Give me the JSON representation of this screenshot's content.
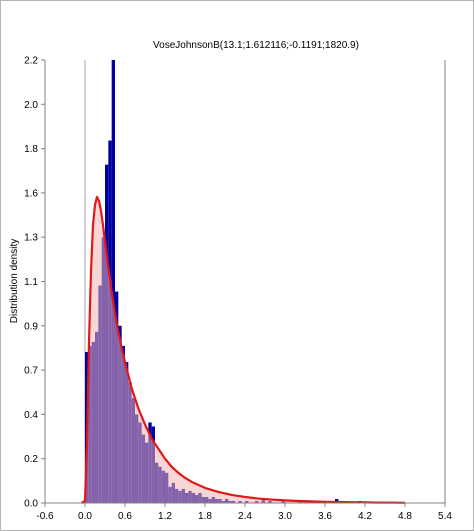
{
  "chart_data": {
    "type": "bar",
    "title": "VoseJohnsonB(13.1;1.612116;-0.1191;1820.9)",
    "xlabel": "",
    "ylabel": "Distribution density",
    "xlim": [
      -0.6,
      5.4
    ],
    "ylim": [
      0,
      2.2
    ],
    "x_ticks": [
      "-0.6",
      "0.0",
      "0.6",
      "1.2",
      "1.8",
      "2.4",
      "3.0",
      "3.6",
      "4.2",
      "4.8",
      "5.4"
    ],
    "x_tick_values": [
      -0.6,
      0.0,
      0.6,
      1.2,
      1.8,
      2.4,
      3.0,
      3.6,
      4.2,
      4.8,
      5.4
    ],
    "y_ticks": [
      "0.0",
      "0.2",
      "0.4",
      "0.7",
      "0.9",
      "1.1",
      "1.3",
      "1.6",
      "1.8",
      "2.0",
      "2.2"
    ],
    "y_tick_values": [
      0.0,
      0.22,
      0.44,
      0.66,
      0.88,
      1.1,
      1.32,
      1.54,
      1.76,
      1.98,
      2.2
    ],
    "grid": false,
    "histogram": {
      "bin_width": 0.05,
      "bins": [
        {
          "x": 0.0,
          "y": 0.75
        },
        {
          "x": 0.05,
          "y": 0.78
        },
        {
          "x": 0.1,
          "y": 0.8
        },
        {
          "x": 0.15,
          "y": 0.85
        },
        {
          "x": 0.2,
          "y": 1.08
        },
        {
          "x": 0.25,
          "y": 1.32
        },
        {
          "x": 0.3,
          "y": 1.68
        },
        {
          "x": 0.35,
          "y": 1.8
        },
        {
          "x": 0.4,
          "y": 2.2
        },
        {
          "x": 0.45,
          "y": 1.05
        },
        {
          "x": 0.5,
          "y": 0.88
        },
        {
          "x": 0.55,
          "y": 0.78
        },
        {
          "x": 0.6,
          "y": 0.7
        },
        {
          "x": 0.65,
          "y": 0.6
        },
        {
          "x": 0.7,
          "y": 0.52
        },
        {
          "x": 0.75,
          "y": 0.44
        },
        {
          "x": 0.8,
          "y": 0.4
        },
        {
          "x": 0.85,
          "y": 0.34
        },
        {
          "x": 0.9,
          "y": 0.3
        },
        {
          "x": 0.95,
          "y": 0.4
        },
        {
          "x": 1.0,
          "y": 0.38
        },
        {
          "x": 1.05,
          "y": 0.2
        },
        {
          "x": 1.1,
          "y": 0.18
        },
        {
          "x": 1.15,
          "y": 0.16
        },
        {
          "x": 1.2,
          "y": 0.15
        },
        {
          "x": 1.25,
          "y": 0.08
        },
        {
          "x": 1.3,
          "y": 0.1
        },
        {
          "x": 1.35,
          "y": 0.07
        },
        {
          "x": 1.4,
          "y": 0.06
        },
        {
          "x": 1.45,
          "y": 0.07
        },
        {
          "x": 1.5,
          "y": 0.05
        },
        {
          "x": 1.55,
          "y": 0.06
        },
        {
          "x": 1.6,
          "y": 0.05
        },
        {
          "x": 1.65,
          "y": 0.04
        },
        {
          "x": 1.7,
          "y": 0.05
        },
        {
          "x": 1.75,
          "y": 0.03
        },
        {
          "x": 1.8,
          "y": 0.03
        },
        {
          "x": 1.85,
          "y": 0.02
        },
        {
          "x": 1.9,
          "y": 0.03
        },
        {
          "x": 1.95,
          "y": 0.02
        },
        {
          "x": 2.0,
          "y": 0.02
        },
        {
          "x": 2.05,
          "y": 0.01
        },
        {
          "x": 2.1,
          "y": 0.02
        },
        {
          "x": 2.15,
          "y": 0.01
        },
        {
          "x": 2.2,
          "y": 0.01
        },
        {
          "x": 2.3,
          "y": 0.01
        },
        {
          "x": 2.4,
          "y": 0.01
        },
        {
          "x": 2.55,
          "y": 0.01
        },
        {
          "x": 2.65,
          "y": 0.02
        },
        {
          "x": 2.75,
          "y": 0.01
        },
        {
          "x": 2.95,
          "y": 0.01
        },
        {
          "x": 3.2,
          "y": 0.01
        },
        {
          "x": 3.3,
          "y": 0.01
        },
        {
          "x": 3.5,
          "y": 0.01
        },
        {
          "x": 3.75,
          "y": 0.02
        },
        {
          "x": 4.1,
          "y": 0.01
        }
      ]
    },
    "density_curve": {
      "x": [
        -0.05,
        0.0,
        0.03,
        0.06,
        0.09,
        0.12,
        0.15,
        0.18,
        0.21,
        0.24,
        0.27,
        0.3,
        0.35,
        0.4,
        0.45,
        0.5,
        0.55,
        0.6,
        0.7,
        0.8,
        0.9,
        1.0,
        1.1,
        1.2,
        1.3,
        1.4,
        1.5,
        1.6,
        1.7,
        1.8,
        2.0,
        2.2,
        2.4,
        2.6,
        2.8,
        3.0,
        3.2,
        3.4,
        3.6,
        3.8,
        4.0,
        4.2,
        4.4,
        4.6,
        4.8
      ],
      "y": [
        0.0,
        0.01,
        0.3,
        0.8,
        1.15,
        1.38,
        1.48,
        1.52,
        1.5,
        1.45,
        1.38,
        1.3,
        1.17,
        1.05,
        0.94,
        0.85,
        0.77,
        0.7,
        0.57,
        0.47,
        0.39,
        0.32,
        0.27,
        0.22,
        0.18,
        0.15,
        0.125,
        0.105,
        0.09,
        0.075,
        0.055,
        0.04,
        0.03,
        0.022,
        0.017,
        0.013,
        0.01,
        0.008,
        0.006,
        0.005,
        0.004,
        0.003,
        0.002,
        0.002,
        0.001
      ]
    },
    "zero_line_x": 0.0,
    "colors": {
      "bars": "#0000a0",
      "curve": "#e01818",
      "curve_fill": "#f2b4b4",
      "axis": "#808080",
      "zero_line": "#a8a8a8"
    }
  }
}
